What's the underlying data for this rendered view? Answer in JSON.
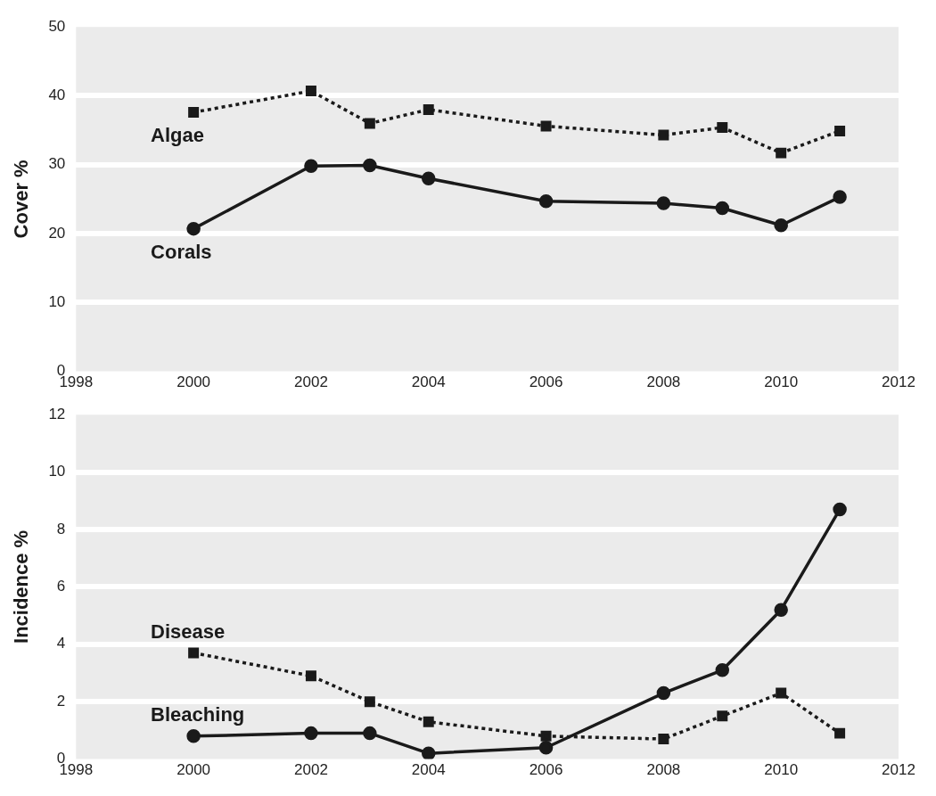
{
  "chart_data": [
    {
      "type": "line",
      "ylabel": "Cover %",
      "x": [
        2000,
        2002,
        2003,
        2004,
        2006,
        2008,
        2009,
        2010,
        2011
      ],
      "xlim": [
        1998,
        2012
      ],
      "xticks": [
        1998,
        2000,
        2002,
        2004,
        2006,
        2008,
        2010,
        2012
      ],
      "ylim": [
        0,
        50
      ],
      "yticks": [
        0,
        10,
        20,
        30,
        40,
        50
      ],
      "grid": "y",
      "legend": false,
      "series": [
        {
          "name": "Algae",
          "color": "#1a1a1a",
          "marker": "square",
          "line_style": "dotted",
          "values": [
            37.6,
            40.7,
            36.0,
            38.0,
            35.6,
            34.3,
            35.4,
            31.7,
            34.9
          ]
        },
        {
          "name": "Corals",
          "color": "#1a1a1a",
          "marker": "circle",
          "line_style": "solid",
          "values": [
            20.7,
            29.8,
            29.9,
            28.0,
            24.7,
            24.4,
            23.7,
            21.2,
            25.3
          ]
        }
      ]
    },
    {
      "type": "line",
      "ylabel": "Incidence %",
      "x": [
        2000,
        2002,
        2003,
        2004,
        2006,
        2008,
        2009,
        2010,
        2011
      ],
      "xlim": [
        1998,
        2012
      ],
      "xticks": [
        1998,
        2000,
        2002,
        2004,
        2006,
        2008,
        2010,
        2012
      ],
      "ylim": [
        0,
        12
      ],
      "yticks": [
        0,
        2,
        4,
        6,
        8,
        10,
        12
      ],
      "grid": "y",
      "legend": false,
      "series": [
        {
          "name": "Disease",
          "color": "#1a1a1a",
          "marker": "square",
          "line_style": "dotted",
          "values": [
            3.7,
            2.9,
            2.0,
            1.3,
            0.8,
            0.7,
            1.5,
            2.3,
            0.9
          ]
        },
        {
          "name": "Bleaching",
          "color": "#1a1a1a",
          "marker": "circle",
          "line_style": "solid",
          "values": [
            0.8,
            0.9,
            0.9,
            0.2,
            0.4,
            2.3,
            3.1,
            5.2,
            8.7
          ]
        }
      ]
    }
  ]
}
